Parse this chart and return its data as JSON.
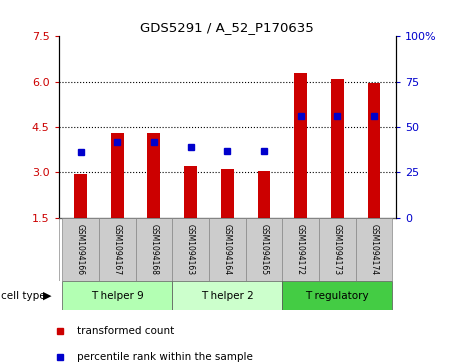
{
  "title": "GDS5291 / A_52_P170635",
  "samples": [
    "GSM1094166",
    "GSM1094167",
    "GSM1094168",
    "GSM1094163",
    "GSM1094164",
    "GSM1094165",
    "GSM1094172",
    "GSM1094173",
    "GSM1094174"
  ],
  "transformed_count": [
    2.95,
    4.3,
    4.3,
    3.2,
    3.1,
    3.05,
    6.3,
    6.1,
    5.95
  ],
  "percentile_rank": [
    36,
    42,
    42,
    39,
    37,
    37,
    56,
    56,
    56
  ],
  "ylim_left": [
    1.5,
    7.5
  ],
  "ylim_right": [
    0,
    100
  ],
  "yticks_left": [
    1.5,
    3.0,
    4.5,
    6.0,
    7.5
  ],
  "yticks_right": [
    0,
    25,
    50,
    75,
    100
  ],
  "cell_groups": [
    {
      "label": "T helper 9",
      "start": 0,
      "end": 3,
      "color": "#b3ffb3"
    },
    {
      "label": "T helper 2",
      "start": 3,
      "end": 6,
      "color": "#ccffcc"
    },
    {
      "label": "T regulatory",
      "start": 6,
      "end": 9,
      "color": "#44cc44"
    }
  ],
  "bar_color": "#cc0000",
  "dot_color": "#0000cc",
  "bar_bottom": 1.5,
  "tick_label_color_left": "#cc0000",
  "tick_label_color_right": "#0000cc",
  "sample_box_color": "#cccccc",
  "legend_labels": [
    "transformed count",
    "percentile rank within the sample"
  ],
  "legend_colors": [
    "#cc0000",
    "#0000cc"
  ],
  "bar_width": 0.35
}
